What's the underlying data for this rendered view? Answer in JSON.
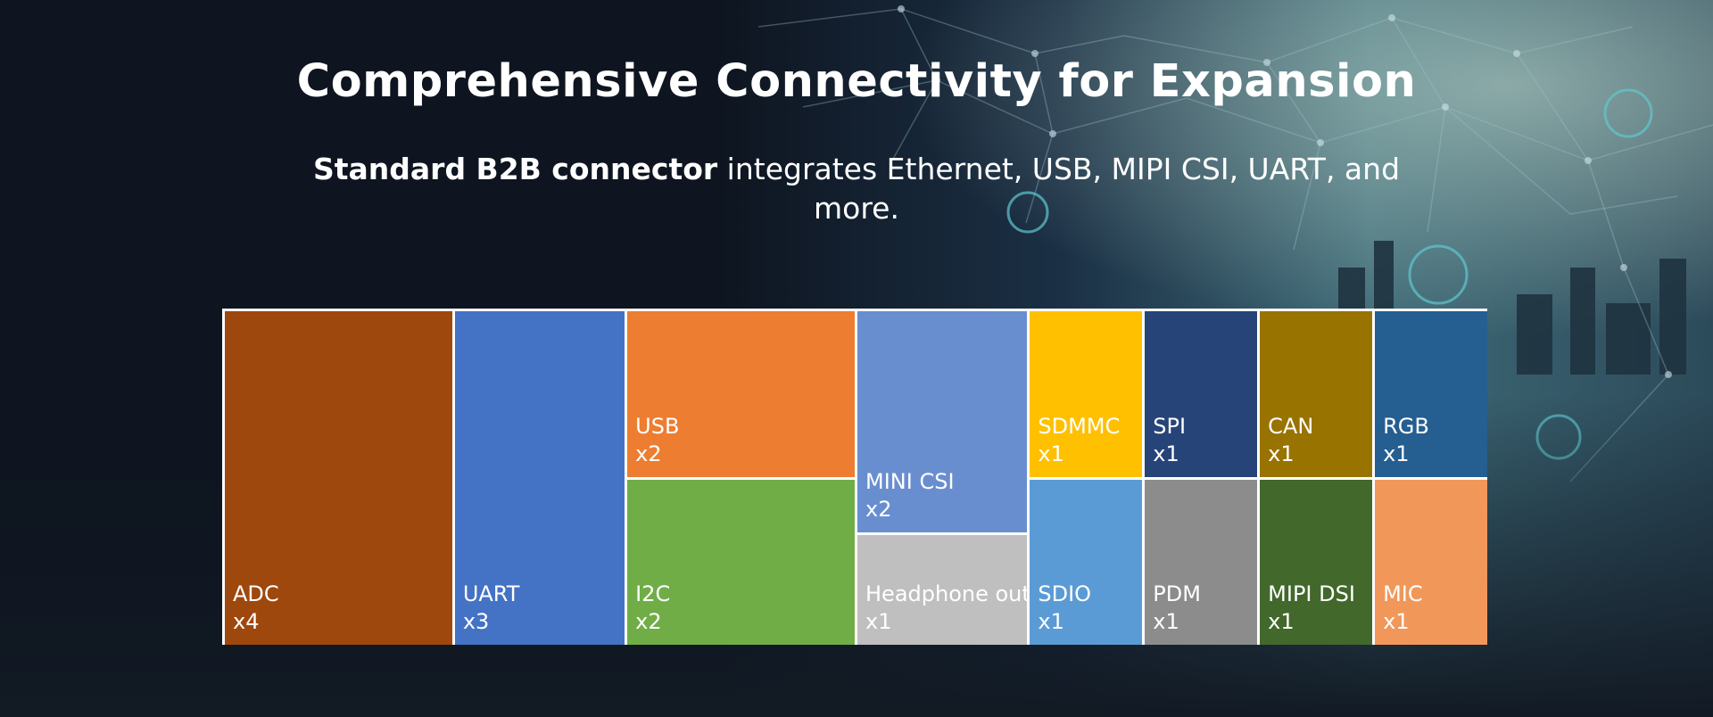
{
  "header": {
    "title": "Comprehensive Connectivity for Expansion",
    "subtitle_strong": "Standard B2B connector",
    "subtitle_rest": " integrates Ethernet, USB, MIPI CSI, UART, and more."
  },
  "chart_data": {
    "type": "treemap",
    "items": [
      {
        "name": "ADC",
        "count_label": "x4",
        "value": 4,
        "color": "#9e480e"
      },
      {
        "name": "UART",
        "count_label": "x3",
        "value": 3,
        "color": "#4472c4"
      },
      {
        "name": "USB",
        "count_label": "x2",
        "value": 2,
        "color": "#ed7d31"
      },
      {
        "name": "I2C",
        "count_label": "x2",
        "value": 2,
        "color": "#70ad47"
      },
      {
        "name": "MINI CSI",
        "count_label": "x2",
        "value": 2,
        "color": "#698ed0"
      },
      {
        "name": "Headphone out",
        "count_label": "x1",
        "value": 1,
        "color": "#bfbfbf"
      },
      {
        "name": "SDMMC",
        "count_label": "x1",
        "value": 1,
        "color": "#ffc000"
      },
      {
        "name": "SDIO",
        "count_label": "x1",
        "value": 1,
        "color": "#5b9bd5"
      },
      {
        "name": "SPI",
        "count_label": "x1",
        "value": 1,
        "color": "#264478"
      },
      {
        "name": "PDM",
        "count_label": "x1",
        "value": 1,
        "color": "#8c8c8c"
      },
      {
        "name": "CAN",
        "count_label": "x1",
        "value": 1,
        "color": "#997300"
      },
      {
        "name": "MIPI DSI",
        "count_label": "x1",
        "value": 1,
        "color": "#43682b"
      },
      {
        "name": "RGB",
        "count_label": "x1",
        "value": 1,
        "color": "#255e91"
      },
      {
        "name": "MIC",
        "count_label": "x1",
        "value": 1,
        "color": "#f1975a"
      }
    ]
  }
}
